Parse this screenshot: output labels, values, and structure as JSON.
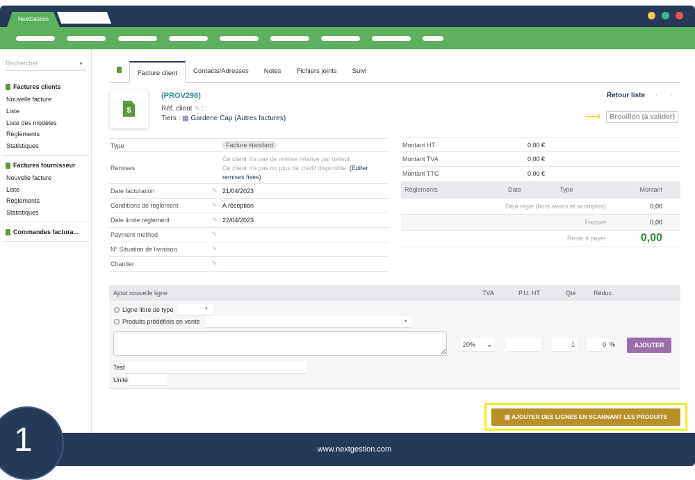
{
  "app": {
    "title": "NextGestion",
    "footer_url": "www.nextgestion.com",
    "step_number": "1"
  },
  "colors": {
    "navy": "#263a58",
    "green": "#5cb05e",
    "gold": "#b8902a",
    "highlight": "#f2ee1a",
    "purple": "#9a6ea8",
    "amount_green": "#2e8b2e"
  },
  "window_controls": [
    "minimize-yellow",
    "maximize-green",
    "close-red"
  ],
  "sidebar": {
    "search_placeholder": "Rechercher",
    "sections": [
      {
        "title": "Factures clients",
        "items": [
          "Nouvelle facture",
          "Liste",
          "Liste des modèles",
          "Règlements",
          "Statistiques"
        ]
      },
      {
        "title": "Factures fournisseur",
        "items": [
          "Nouvelle facture",
          "Liste",
          "Règlements",
          "Statistiques"
        ]
      },
      {
        "title": "Commandes factura...",
        "items": []
      }
    ]
  },
  "tabs": [
    "Facture client",
    "Contacts/Adresses",
    "Notes",
    "Fichiers joints",
    "Suivi"
  ],
  "invoice": {
    "ref": "(PROV296)",
    "ref_client_label": "Réf. client",
    "ref_client_suffix": ":",
    "tiers_label": "Tiers :",
    "tiers_value": "Garderie Cap (Autres factures)",
    "back_link": "Retour liste",
    "status": "Brouillon (à valider)"
  },
  "fields": [
    {
      "label": "Type",
      "value": "Facture standard"
    },
    {
      "label": "Remises",
      "line1": "Ce client n'a pas de remise relative par défaut.",
      "line2": "Ce client n'a pas ou plus de crédit disponible.",
      "link1": "(Editer",
      "link2": "remises fixes)"
    },
    {
      "label": "Date facturation",
      "value": "21/04/2023"
    },
    {
      "label": "Conditions de règlement",
      "value": "A réception"
    },
    {
      "label": "Date limite règlement",
      "value": "22/04/2023"
    },
    {
      "label": "Payment method",
      "value": ""
    },
    {
      "label": "N° Situation de livraison",
      "value": ""
    },
    {
      "label": "Chantier",
      "value": ""
    }
  ],
  "amounts": [
    {
      "label": "Montant HT",
      "value": "0,00 €"
    },
    {
      "label": "Montant TVA",
      "value": "0,00 €"
    },
    {
      "label": "Montant TTC",
      "value": "0,00 €"
    }
  ],
  "payments": {
    "headers": [
      "Règlements",
      "Date",
      "Type",
      "Montant"
    ],
    "rows": [
      {
        "label": "Déjà réglé (hors avoirs et acomptes)",
        "value": "0,00"
      },
      {
        "label": "Facturé",
        "value": "0,00"
      },
      {
        "label": "Reste à payer",
        "value": "0,00"
      }
    ]
  },
  "new_line": {
    "headers": [
      "Ajout nouvelle ligne",
      "TVA",
      "P.U. HT",
      "Qté",
      "Réduc."
    ],
    "radio_free": "Ligne libre de type",
    "radio_products": "Produits prédéfinis en vente",
    "tva": "20%",
    "qty": "1",
    "discount": "0",
    "discount_unit": "%",
    "add_button": "AJOUTER",
    "extra_label_1": "Test",
    "extra_label_2": "Unité"
  },
  "scan_button": "AJOUTER DES LIGNES EN SCANNANT LES PRODUITS"
}
